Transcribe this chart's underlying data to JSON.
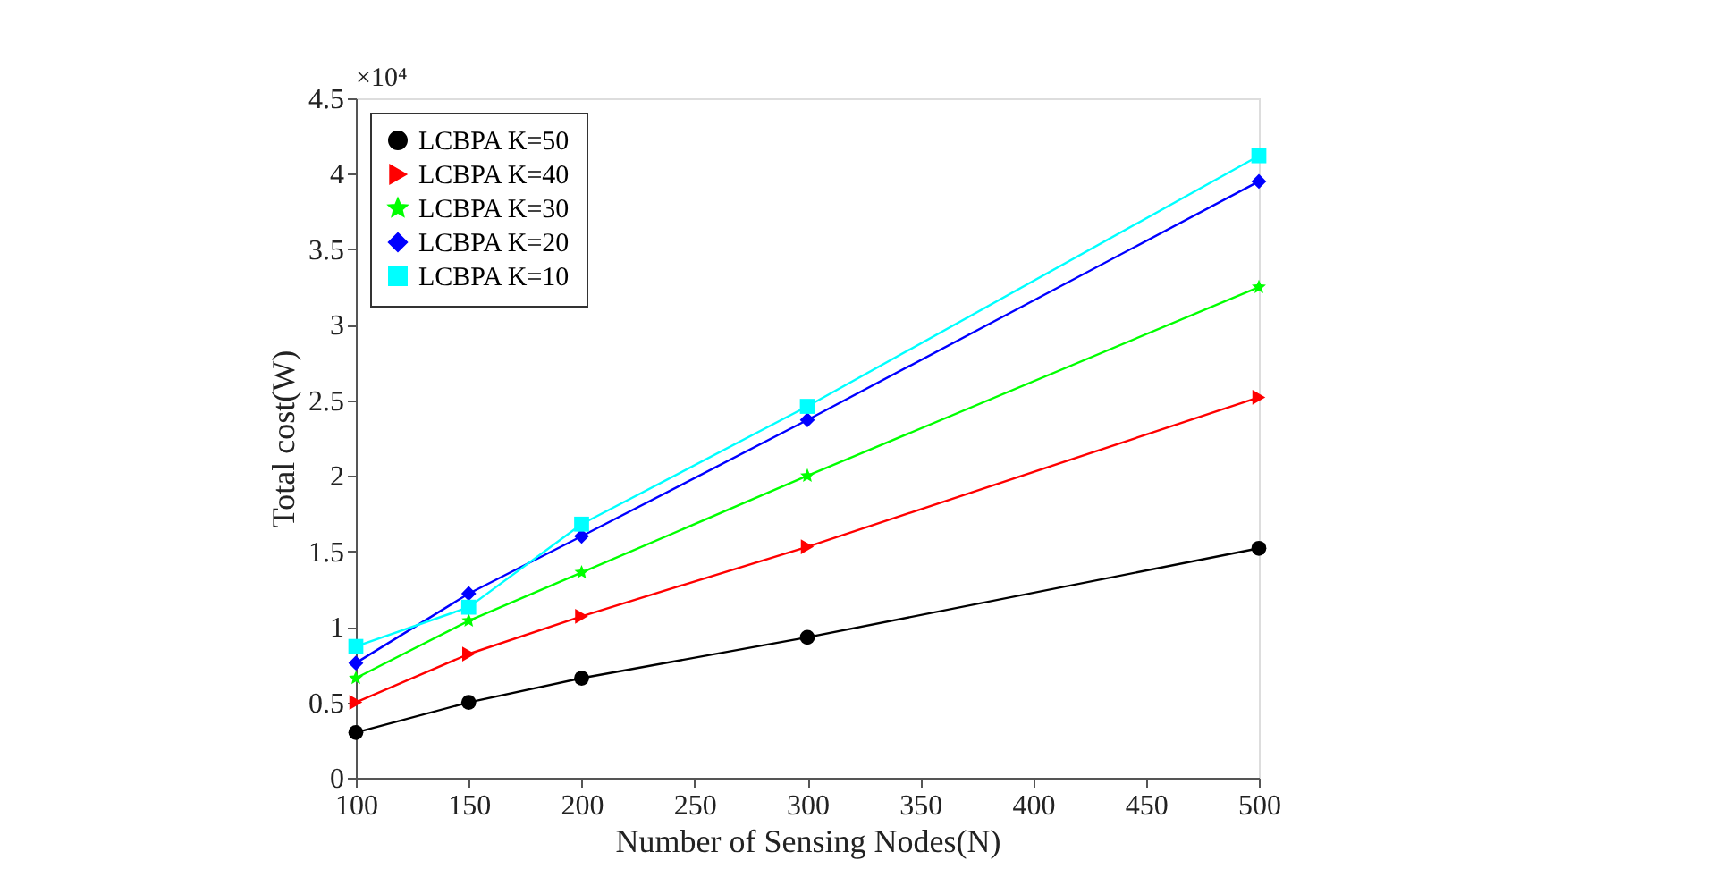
{
  "chart_data": {
    "type": "line",
    "xlabel": "Number of Sensing Nodes(N)",
    "ylabel": "Total cost(W)",
    "annotations": [
      "×10⁴"
    ],
    "x": [
      100,
      150,
      200,
      300,
      500
    ],
    "xlim": [
      100,
      500
    ],
    "xticks": [
      100,
      150,
      200,
      250,
      300,
      350,
      400,
      450,
      500
    ],
    "ylim": [
      0,
      4.5
    ],
    "yticks": [
      0,
      0.5,
      1,
      1.5,
      2,
      2.5,
      3,
      3.5,
      4,
      4.5
    ],
    "grid": false,
    "legend": "top left",
    "line_style": "solid",
    "series": [
      {
        "name": "LCBPA K=50",
        "color": "#000000",
        "marker": "circle",
        "values": [
          0.3,
          0.5,
          0.66,
          0.93,
          1.52
        ]
      },
      {
        "name": "LCBPA K=40",
        "color": "#ff0000",
        "marker": "triangle",
        "values": [
          0.5,
          0.82,
          1.07,
          1.53,
          2.52
        ]
      },
      {
        "name": "LCBPA K=30",
        "color": "#00ff00",
        "marker": "star",
        "values": [
          0.66,
          1.04,
          1.36,
          2.0,
          3.25
        ]
      },
      {
        "name": "LCBPA K=20",
        "color": "#0000ff",
        "marker": "diamond",
        "values": [
          0.76,
          1.22,
          1.6,
          2.37,
          3.95
        ]
      },
      {
        "name": "LCBPA K=10",
        "color": "#00ffff",
        "marker": "square",
        "values": [
          0.87,
          1.13,
          1.68,
          2.46,
          4.12
        ]
      }
    ]
  }
}
